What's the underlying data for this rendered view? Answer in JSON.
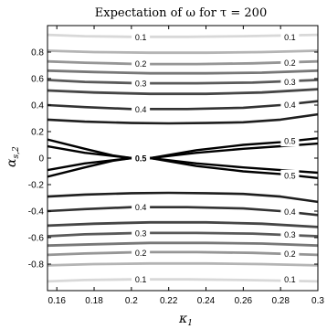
{
  "chart_data": {
    "type": "contour",
    "title": "Expectation of ω for τ = 200",
    "xlabel": "κ1",
    "ylabel": "αs,2",
    "xlim": [
      0.155,
      0.3
    ],
    "ylim": [
      -1.0,
      1.0
    ],
    "x_ticks": [
      {
        "value": 0.16,
        "label": "0.16"
      },
      {
        "value": 0.18,
        "label": "0.18"
      },
      {
        "value": 0.2,
        "label": "0.2"
      },
      {
        "value": 0.22,
        "label": "0.22"
      },
      {
        "value": 0.24,
        "label": "0.24"
      },
      {
        "value": 0.26,
        "label": "0.26"
      },
      {
        "value": 0.28,
        "label": "0.28"
      },
      {
        "value": 0.3,
        "label": "0.3"
      }
    ],
    "y_ticks": [
      {
        "value": 0.8,
        "label": "0.8"
      },
      {
        "value": 0.6,
        "label": "0.6"
      },
      {
        "value": 0.4,
        "label": "0.4"
      },
      {
        "value": 0.2,
        "label": "0.2"
      },
      {
        "value": 0.0,
        "label": "0"
      },
      {
        "value": -0.2,
        "label": "-0.2"
      },
      {
        "value": -0.4,
        "label": "-0.4"
      },
      {
        "value": -0.6,
        "label": "-0.6"
      },
      {
        "value": -0.8,
        "label": "-0.8"
      }
    ],
    "grid": false,
    "contours": [
      {
        "level": 0.1,
        "color": "#d8d8d8",
        "points": [
          [
            0.155,
            0.93
          ],
          [
            0.175,
            0.92
          ],
          [
            0.2,
            0.915
          ],
          [
            0.23,
            0.915
          ],
          [
            0.26,
            0.92
          ],
          [
            0.3,
            0.93
          ]
        ]
      },
      {
        "level": 0.1,
        "color": "#d8d8d8",
        "points": [
          [
            0.155,
            -0.93
          ],
          [
            0.175,
            -0.92
          ],
          [
            0.2,
            -0.915
          ],
          [
            0.23,
            -0.915
          ],
          [
            0.26,
            -0.92
          ],
          [
            0.3,
            -0.93
          ]
        ]
      },
      {
        "level": 0.15,
        "color": "#b4b4b4",
        "points": [
          [
            0.155,
            0.81
          ],
          [
            0.18,
            0.8
          ],
          [
            0.21,
            0.795
          ],
          [
            0.24,
            0.795
          ],
          [
            0.27,
            0.8
          ],
          [
            0.3,
            0.81
          ]
        ]
      },
      {
        "level": 0.15,
        "color": "#b4b4b4",
        "points": [
          [
            0.155,
            -0.81
          ],
          [
            0.18,
            -0.8
          ],
          [
            0.21,
            -0.795
          ],
          [
            0.24,
            -0.795
          ],
          [
            0.27,
            -0.8
          ],
          [
            0.3,
            -0.81
          ]
        ]
      },
      {
        "level": 0.2,
        "color": "#969696",
        "points": [
          [
            0.155,
            0.73
          ],
          [
            0.175,
            0.72
          ],
          [
            0.205,
            0.71
          ],
          [
            0.235,
            0.71
          ],
          [
            0.265,
            0.715
          ],
          [
            0.3,
            0.73
          ]
        ]
      },
      {
        "level": 0.2,
        "color": "#969696",
        "points": [
          [
            0.155,
            -0.73
          ],
          [
            0.175,
            -0.72
          ],
          [
            0.205,
            -0.71
          ],
          [
            0.235,
            -0.71
          ],
          [
            0.265,
            -0.715
          ],
          [
            0.3,
            -0.73
          ]
        ]
      },
      {
        "level": 0.25,
        "color": "#787878",
        "points": [
          [
            0.155,
            0.66
          ],
          [
            0.18,
            0.65
          ],
          [
            0.21,
            0.64
          ],
          [
            0.24,
            0.64
          ],
          [
            0.27,
            0.645
          ],
          [
            0.3,
            0.66
          ]
        ]
      },
      {
        "level": 0.25,
        "color": "#787878",
        "points": [
          [
            0.155,
            -0.66
          ],
          [
            0.18,
            -0.65
          ],
          [
            0.21,
            -0.64
          ],
          [
            0.24,
            -0.64
          ],
          [
            0.27,
            -0.645
          ],
          [
            0.3,
            -0.66
          ]
        ]
      },
      {
        "level": 0.3,
        "color": "#5a5a5a",
        "points": [
          [
            0.155,
            0.59
          ],
          [
            0.175,
            0.575
          ],
          [
            0.205,
            0.565
          ],
          [
            0.235,
            0.565
          ],
          [
            0.265,
            0.57
          ],
          [
            0.3,
            0.59
          ]
        ]
      },
      {
        "level": 0.3,
        "color": "#5a5a5a",
        "points": [
          [
            0.155,
            -0.59
          ],
          [
            0.175,
            -0.575
          ],
          [
            0.205,
            -0.565
          ],
          [
            0.235,
            -0.565
          ],
          [
            0.265,
            -0.57
          ],
          [
            0.3,
            -0.59
          ]
        ]
      },
      {
        "level": 0.35,
        "color": "#464646",
        "points": [
          [
            0.155,
            0.51
          ],
          [
            0.18,
            0.495
          ],
          [
            0.21,
            0.485
          ],
          [
            0.24,
            0.485
          ],
          [
            0.27,
            0.495
          ],
          [
            0.3,
            0.52
          ]
        ]
      },
      {
        "level": 0.35,
        "color": "#464646",
        "points": [
          [
            0.155,
            -0.51
          ],
          [
            0.18,
            -0.495
          ],
          [
            0.21,
            -0.485
          ],
          [
            0.24,
            -0.485
          ],
          [
            0.27,
            -0.495
          ],
          [
            0.3,
            -0.52
          ]
        ]
      },
      {
        "level": 0.4,
        "color": "#323232",
        "points": [
          [
            0.155,
            0.4
          ],
          [
            0.175,
            0.385
          ],
          [
            0.2,
            0.37
          ],
          [
            0.23,
            0.37
          ],
          [
            0.26,
            0.38
          ],
          [
            0.28,
            0.4
          ],
          [
            0.3,
            0.43
          ]
        ]
      },
      {
        "level": 0.4,
        "color": "#323232",
        "points": [
          [
            0.155,
            -0.4
          ],
          [
            0.175,
            -0.385
          ],
          [
            0.2,
            -0.37
          ],
          [
            0.23,
            -0.37
          ],
          [
            0.26,
            -0.38
          ],
          [
            0.28,
            -0.4
          ],
          [
            0.3,
            -0.43
          ]
        ]
      },
      {
        "level": 0.45,
        "color": "#1e1e1e",
        "points": [
          [
            0.155,
            0.29
          ],
          [
            0.175,
            0.275
          ],
          [
            0.2,
            0.265
          ],
          [
            0.22,
            0.262
          ],
          [
            0.24,
            0.265
          ],
          [
            0.26,
            0.27
          ],
          [
            0.28,
            0.29
          ],
          [
            0.3,
            0.33
          ]
        ]
      },
      {
        "level": 0.45,
        "color": "#1e1e1e",
        "points": [
          [
            0.155,
            -0.29
          ],
          [
            0.175,
            -0.275
          ],
          [
            0.2,
            -0.265
          ],
          [
            0.22,
            -0.262
          ],
          [
            0.24,
            -0.265
          ],
          [
            0.26,
            -0.27
          ],
          [
            0.28,
            -0.29
          ],
          [
            0.3,
            -0.33
          ]
        ]
      },
      {
        "level": 0.5,
        "color": "#000000",
        "points": [
          [
            0.155,
            0.14
          ],
          [
            0.175,
            0.07
          ],
          [
            0.19,
            0.02
          ],
          [
            0.2,
            0.0
          ],
          [
            0.21,
            0.0
          ],
          [
            0.235,
            0.06
          ],
          [
            0.26,
            0.1
          ],
          [
            0.28,
            0.12
          ],
          [
            0.3,
            0.15
          ]
        ]
      },
      {
        "level": 0.5,
        "color": "#000000",
        "points": [
          [
            0.155,
            -0.14
          ],
          [
            0.175,
            -0.07
          ],
          [
            0.19,
            -0.02
          ],
          [
            0.2,
            0.0
          ],
          [
            0.21,
            0.0
          ],
          [
            0.235,
            -0.06
          ],
          [
            0.26,
            -0.1
          ],
          [
            0.28,
            -0.12
          ],
          [
            0.3,
            -0.15
          ]
        ]
      },
      {
        "level": 0.5,
        "color": "#000000",
        "points": [
          [
            0.155,
            0.09
          ],
          [
            0.175,
            0.04
          ],
          [
            0.2,
            0.0
          ],
          [
            0.21,
            0.0
          ],
          [
            0.235,
            0.04
          ],
          [
            0.26,
            0.07
          ],
          [
            0.28,
            0.09
          ],
          [
            0.3,
            0.11
          ]
        ]
      },
      {
        "level": 0.5,
        "color": "#000000",
        "points": [
          [
            0.155,
            -0.09
          ],
          [
            0.175,
            -0.04
          ],
          [
            0.2,
            0.0
          ],
          [
            0.21,
            0.0
          ],
          [
            0.235,
            -0.04
          ],
          [
            0.26,
            -0.07
          ],
          [
            0.28,
            -0.09
          ],
          [
            0.3,
            -0.11
          ]
        ]
      }
    ],
    "contour_labels": [
      {
        "text": "0.1",
        "x": 0.205,
        "y": 0.915
      },
      {
        "text": "0.1",
        "x": 0.285,
        "y": 0.915
      },
      {
        "text": "0.2",
        "x": 0.205,
        "y": 0.715
      },
      {
        "text": "0.2",
        "x": 0.285,
        "y": 0.72
      },
      {
        "text": "0.3",
        "x": 0.205,
        "y": 0.565
      },
      {
        "text": "0.3",
        "x": 0.285,
        "y": 0.575
      },
      {
        "text": "0.4",
        "x": 0.205,
        "y": 0.37
      },
      {
        "text": "0.4",
        "x": 0.285,
        "y": 0.405
      },
      {
        "text": "0.5",
        "x": 0.285,
        "y": 0.13
      },
      {
        "text": "0.5",
        "x": 0.205,
        "y": 0.0
      },
      {
        "text": "0.5",
        "x": 0.285,
        "y": -0.13
      },
      {
        "text": "0.4",
        "x": 0.205,
        "y": -0.37
      },
      {
        "text": "0.4",
        "x": 0.285,
        "y": -0.405
      },
      {
        "text": "0.3",
        "x": 0.205,
        "y": -0.565
      },
      {
        "text": "0.3",
        "x": 0.285,
        "y": -0.575
      },
      {
        "text": "0.2",
        "x": 0.205,
        "y": -0.715
      },
      {
        "text": "0.2",
        "x": 0.285,
        "y": -0.72
      },
      {
        "text": "0.1",
        "x": 0.205,
        "y": -0.915
      },
      {
        "text": "0.1",
        "x": 0.285,
        "y": -0.915
      }
    ]
  }
}
